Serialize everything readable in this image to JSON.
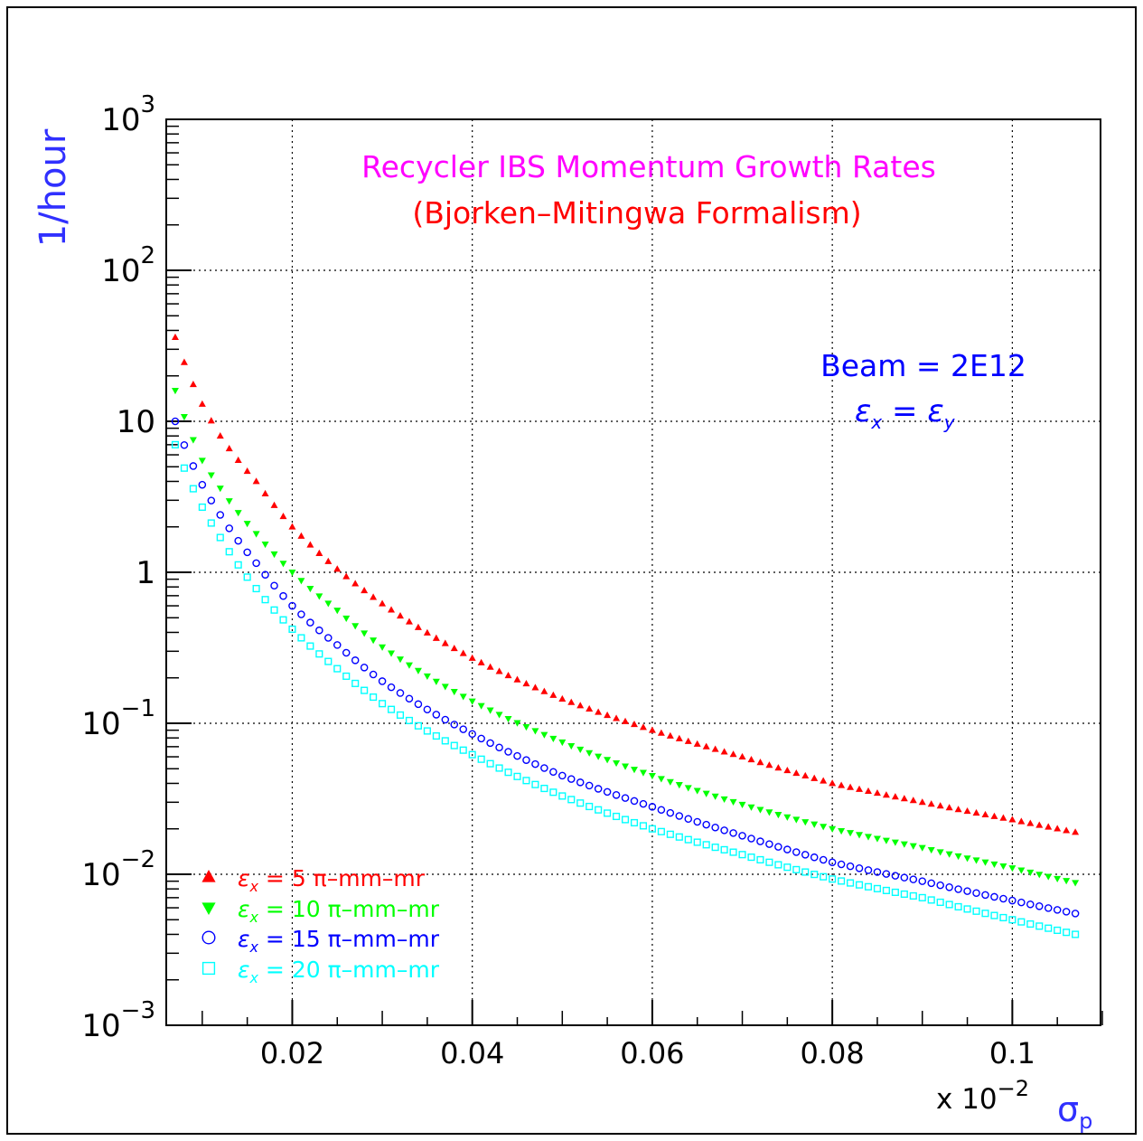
{
  "chart_data": {
    "type": "scatter",
    "title": "Recycler IBS Momentum Growth Rates",
    "subtitle": "(Bjorken–Mitingwa Formalism)",
    "ylabel": "1/hour",
    "xlabel": "σ",
    "xlabel_sub": "p",
    "x_multiplier": "x 10",
    "x_multiplier_exp": "−2",
    "yscale": "log",
    "xlim": [
      0.006,
      0.1098
    ],
    "ylim": [
      0.001,
      1000
    ],
    "grid": true,
    "legend_position": "bottom-left",
    "x_ticks": [
      {
        "value": 0.02,
        "label": "0.02"
      },
      {
        "value": 0.04,
        "label": "0.04"
      },
      {
        "value": 0.06,
        "label": "0.06"
      },
      {
        "value": 0.08,
        "label": "0.08"
      },
      {
        "value": 0.1,
        "label": "0.1"
      }
    ],
    "y_ticks": [
      {
        "value": 0.001,
        "base": "10",
        "exp": "−3"
      },
      {
        "value": 0.01,
        "base": "10",
        "exp": "−2"
      },
      {
        "value": 0.1,
        "base": "10",
        "exp": "−1"
      },
      {
        "value": 1,
        "base": "1",
        "exp": ""
      },
      {
        "value": 10,
        "base": "10",
        "exp": ""
      },
      {
        "value": 100,
        "base": "10",
        "exp": "2"
      },
      {
        "value": 1000,
        "base": "10",
        "exp": "3"
      }
    ],
    "annotations": [
      {
        "line": "Beam = 2E12"
      },
      {
        "line": "εx = εy",
        "eps": "ε",
        "sub1": "x",
        "eq": " = ",
        "sub2": "y"
      }
    ],
    "series": [
      {
        "name": "εx = 5 π–mm–mr",
        "eps": "ε",
        "sub": "x",
        "rest": " = 5 π–mm–mr",
        "marker": "triangle-up",
        "color": "#ff0000",
        "x": [
          0.007,
          0.01,
          0.012,
          0.016,
          0.02,
          0.025,
          0.03,
          0.04,
          0.05,
          0.06,
          0.07,
          0.08,
          0.09,
          0.1,
          0.107
        ],
        "y": [
          36,
          13,
          8,
          4,
          2,
          1.05,
          0.62,
          0.27,
          0.145,
          0.09,
          0.06,
          0.04,
          0.03,
          0.023,
          0.019
        ]
      },
      {
        "name": "εx = 10 π–mm–mr",
        "eps": "ε",
        "sub": "x",
        "rest": " = 10 π–mm–mr",
        "marker": "triangle-down",
        "color": "#00ff00",
        "x": [
          0.007,
          0.01,
          0.012,
          0.016,
          0.02,
          0.025,
          0.03,
          0.04,
          0.05,
          0.06,
          0.07,
          0.08,
          0.09,
          0.1,
          0.107
        ],
        "y": [
          16,
          5.5,
          3.6,
          1.8,
          1.0,
          0.56,
          0.32,
          0.14,
          0.075,
          0.045,
          0.029,
          0.02,
          0.015,
          0.011,
          0.0088
        ]
      },
      {
        "name": "εx = 15 π–mm–mr",
        "eps": "ε",
        "sub": "x",
        "rest": " = 15 π–mm–mr",
        "marker": "circle",
        "color": "#0000ff",
        "x": [
          0.007,
          0.01,
          0.012,
          0.016,
          0.02,
          0.025,
          0.03,
          0.04,
          0.05,
          0.06,
          0.07,
          0.08,
          0.09,
          0.1,
          0.107
        ],
        "y": [
          10,
          3.8,
          2.4,
          1.15,
          0.6,
          0.33,
          0.19,
          0.085,
          0.045,
          0.028,
          0.018,
          0.012,
          0.009,
          0.0067,
          0.0055
        ]
      },
      {
        "name": "εx = 20 π–mm–mr",
        "eps": "ε",
        "sub": "x",
        "rest": " = 20 π–mm–mr",
        "marker": "square",
        "color": "#00ffff",
        "x": [
          0.007,
          0.01,
          0.012,
          0.016,
          0.02,
          0.025,
          0.03,
          0.04,
          0.05,
          0.06,
          0.07,
          0.08,
          0.09,
          0.1,
          0.107
        ],
        "y": [
          7,
          2.7,
          1.7,
          0.78,
          0.42,
          0.23,
          0.135,
          0.062,
          0.033,
          0.02,
          0.0135,
          0.0093,
          0.007,
          0.005,
          0.004
        ]
      }
    ]
  }
}
